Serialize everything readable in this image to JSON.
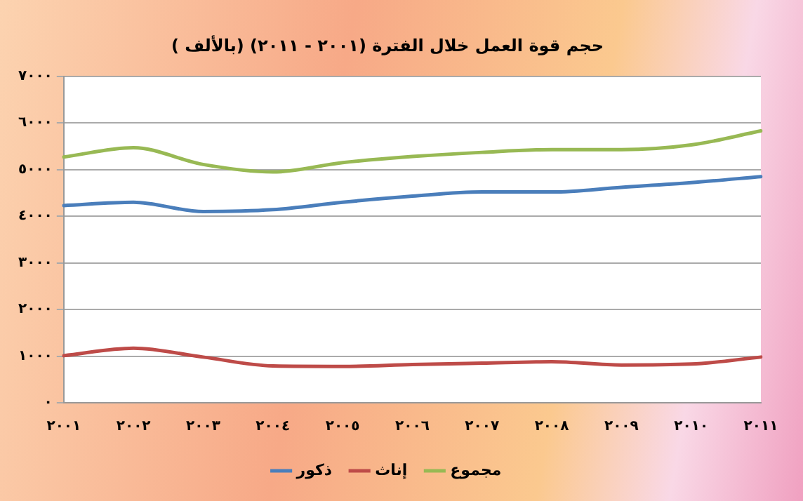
{
  "chart_data": {
    "type": "line",
    "title": "حجم قوة العمل خلال الفترة (٢٠٠١ - ٢٠١١) (بالألف )",
    "categories": [
      "٢٠٠١",
      "٢٠٠٢",
      "٢٠٠٣",
      "٢٠٠٤",
      "٢٠٠٥",
      "٢٠٠٦",
      "٢٠٠٧",
      "٢٠٠٨",
      "٢٠٠٩",
      "٢٠١٠",
      "٢٠١١"
    ],
    "series": [
      {
        "name": "ذكور",
        "color": "#4a7ebb",
        "values": [
          4230,
          4300,
          4100,
          4140,
          4300,
          4430,
          4520,
          4520,
          4620,
          4720,
          4850
        ]
      },
      {
        "name": "إناث",
        "color": "#be4b48",
        "values": [
          1010,
          1170,
          980,
          790,
          780,
          820,
          850,
          880,
          810,
          830,
          980
        ]
      },
      {
        "name": "مجموع",
        "color": "#98b954",
        "values": [
          5270,
          5470,
          5110,
          4950,
          5150,
          5280,
          5370,
          5430,
          5430,
          5530,
          5830
        ]
      }
    ],
    "ylim": [
      0,
      7000
    ],
    "yticks": [
      {
        "value": 0,
        "label": "٠"
      },
      {
        "value": 1000,
        "label": "١٠٠٠"
      },
      {
        "value": 2000,
        "label": "٢٠٠٠"
      },
      {
        "value": 3000,
        "label": "٣٠٠٠"
      },
      {
        "value": 4000,
        "label": "٤٠٠٠"
      },
      {
        "value": 5000,
        "label": "٥٠٠٠"
      },
      {
        "value": 6000,
        "label": "٦٠٠٠"
      },
      {
        "value": 7000,
        "label": "٧٠٠٠"
      }
    ],
    "grid": "y",
    "legend": "bottom",
    "marker": "none",
    "line_style": "solid"
  }
}
